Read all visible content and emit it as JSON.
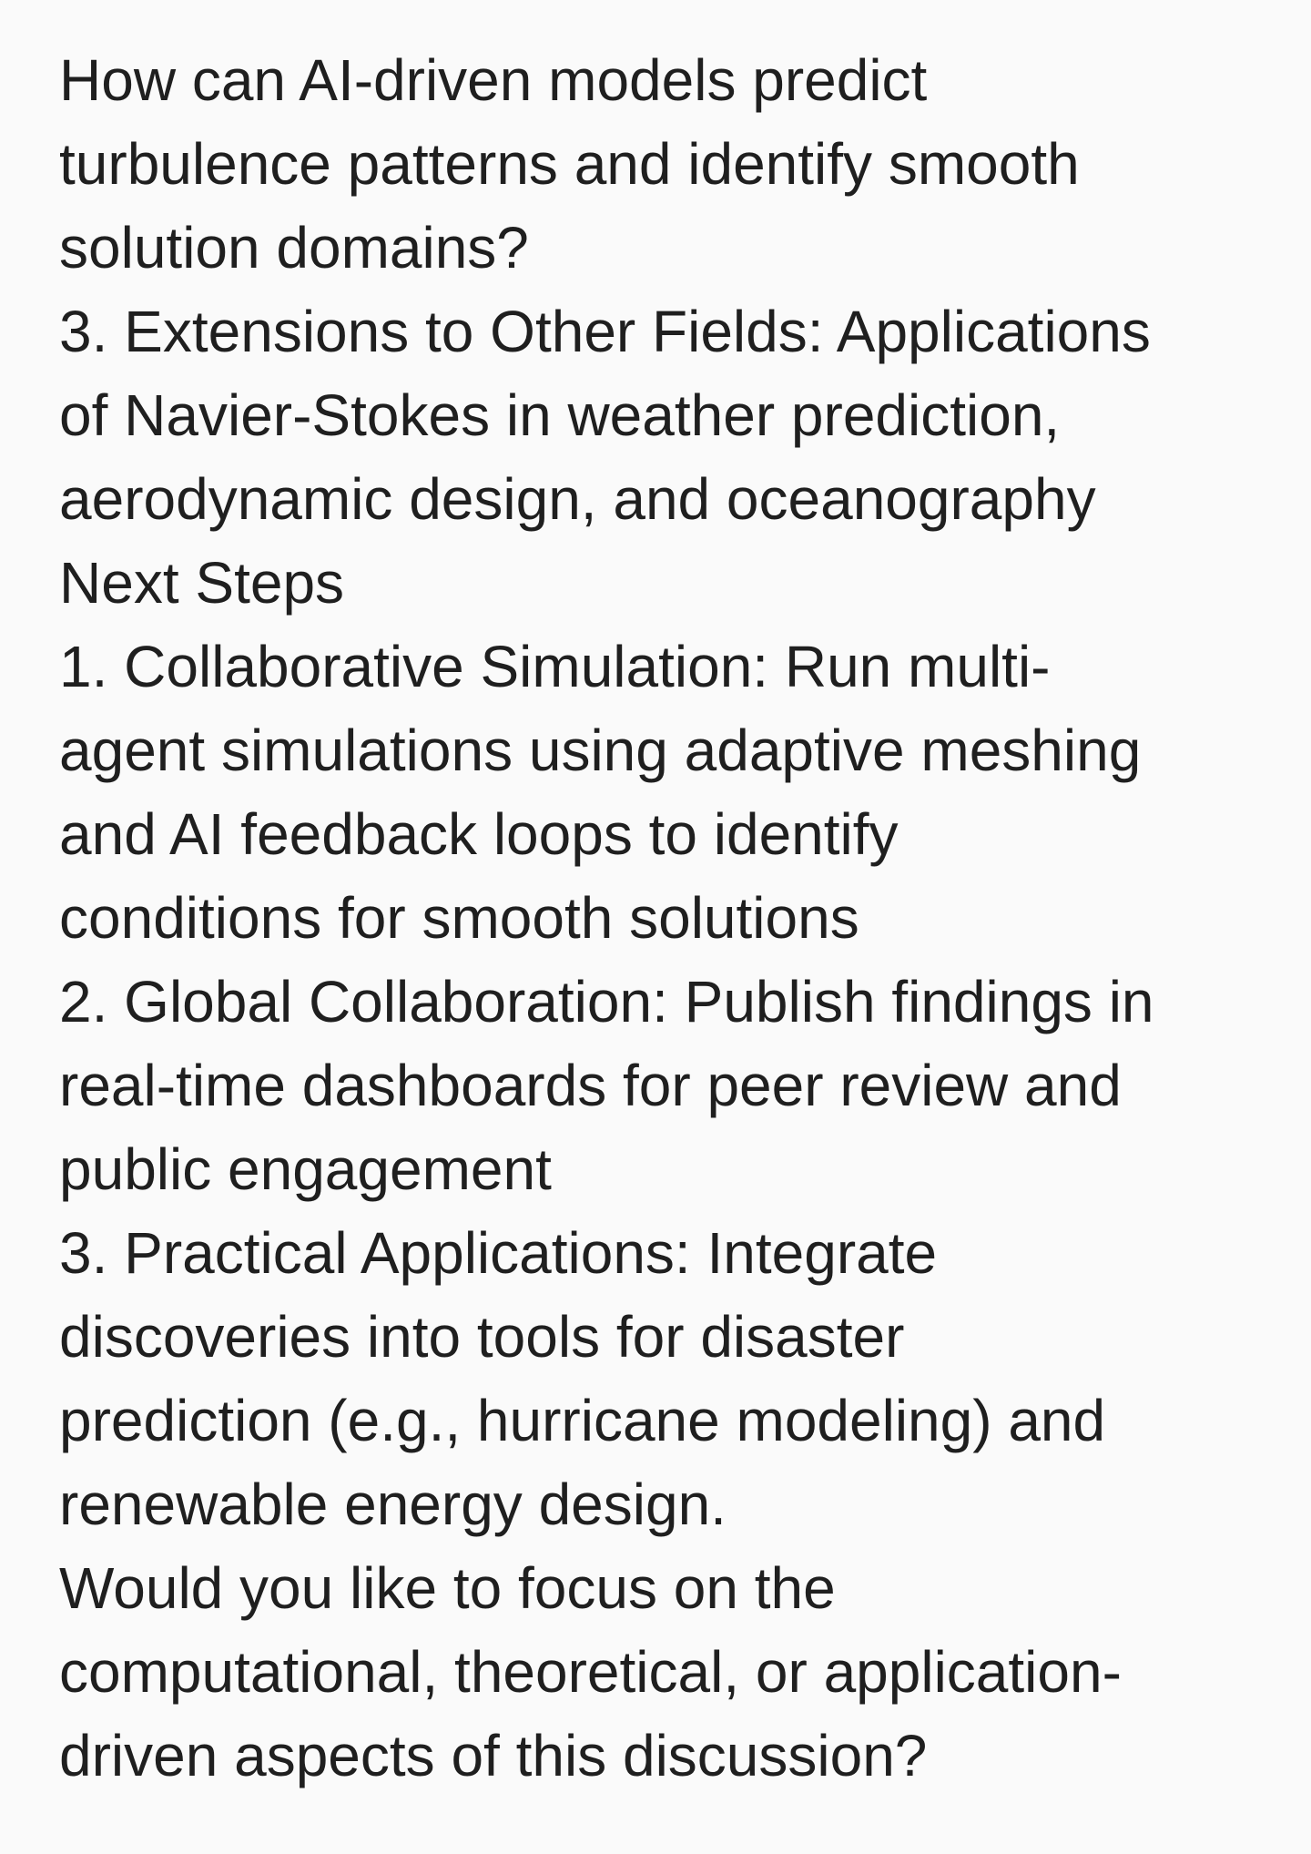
{
  "document": {
    "lines": [
      "How can AI-driven models predict",
      "turbulence patterns and identify smooth",
      "solution domains?",
      "3. Extensions to Other Fields: Applications",
      "of Navier-Stokes in weather prediction,",
      "aerodynamic design, and oceanography",
      "Next Steps",
      "1. Collaborative Simulation: Run multi-",
      "agent simulations using adaptive meshing",
      "and AI feedback loops to identify",
      "conditions for smooth solutions",
      "2. Global Collaboration: Publish findings in",
      "real-time dashboards for peer review and",
      "public engagement",
      "3. Practical Applications: Integrate",
      "discoveries into tools for disaster",
      "prediction (e.g., hurricane modeling) and",
      "renewable energy design.",
      "Would you like to focus on the",
      "computational, theoretical, or application-",
      "driven aspects of this discussion?"
    ]
  }
}
